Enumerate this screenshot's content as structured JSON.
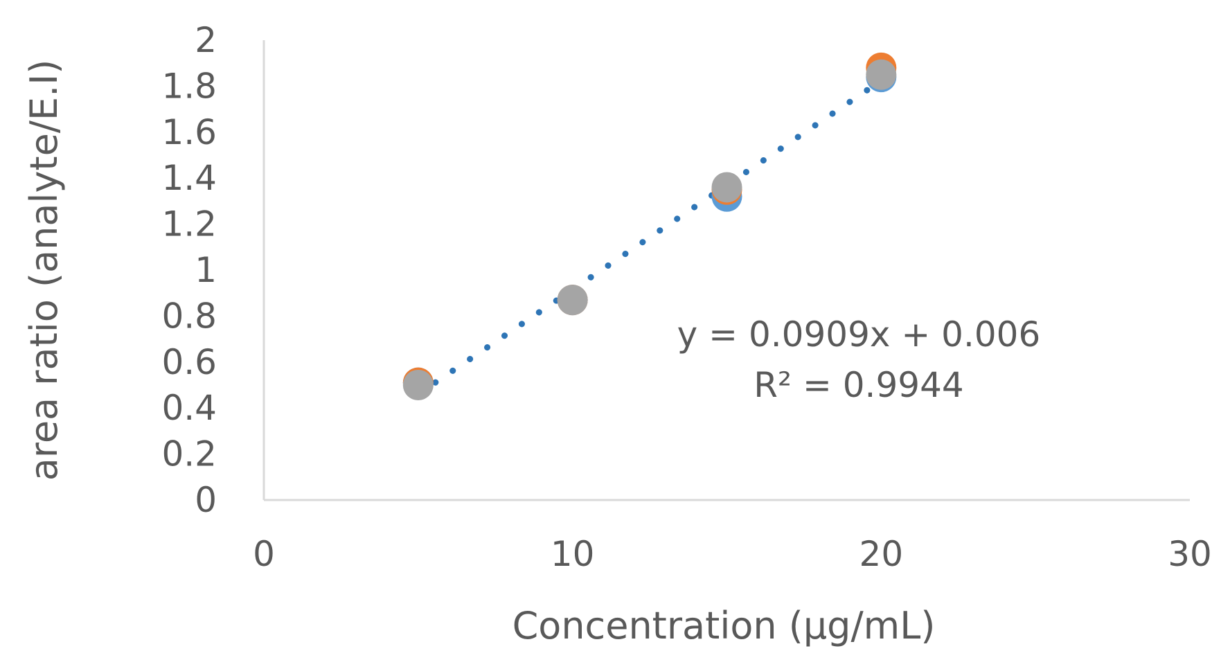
{
  "chart_data": {
    "type": "scatter",
    "title": "",
    "xlabel": "Concentration (µg/mL)",
    "ylabel": "area ratio (analyte/E.I)",
    "xlim": [
      0,
      30
    ],
    "ylim": [
      0,
      2
    ],
    "xticks": [
      "0",
      "10",
      "20",
      "30"
    ],
    "yticks": [
      "0",
      "0.2",
      "0.4",
      "0.6",
      "0.8",
      "1",
      "1.2",
      "1.4",
      "1.6",
      "1.8",
      "2"
    ],
    "grid": false,
    "legend": "none",
    "series": [
      {
        "color": "#5B9BD5",
        "x": [
          5,
          10,
          15,
          20
        ],
        "y": [
          0.51,
          0.87,
          1.32,
          1.84
        ]
      },
      {
        "color": "#ED7D31",
        "x": [
          5,
          10,
          15,
          20
        ],
        "y": [
          0.51,
          0.87,
          1.35,
          1.88
        ]
      },
      {
        "color": "#A5A5A5",
        "x": [
          5,
          10,
          15,
          20
        ],
        "y": [
          0.5,
          0.87,
          1.36,
          1.85
        ]
      }
    ],
    "trendline": {
      "type": "linear",
      "slope": 0.0909,
      "intercept": 0.006,
      "x_range": [
        5,
        20
      ],
      "color": "#2E75B6",
      "style": "dotted"
    },
    "annotations": [
      "y = 0.0909x + 0.006",
      "R² = 0.9944"
    ]
  }
}
